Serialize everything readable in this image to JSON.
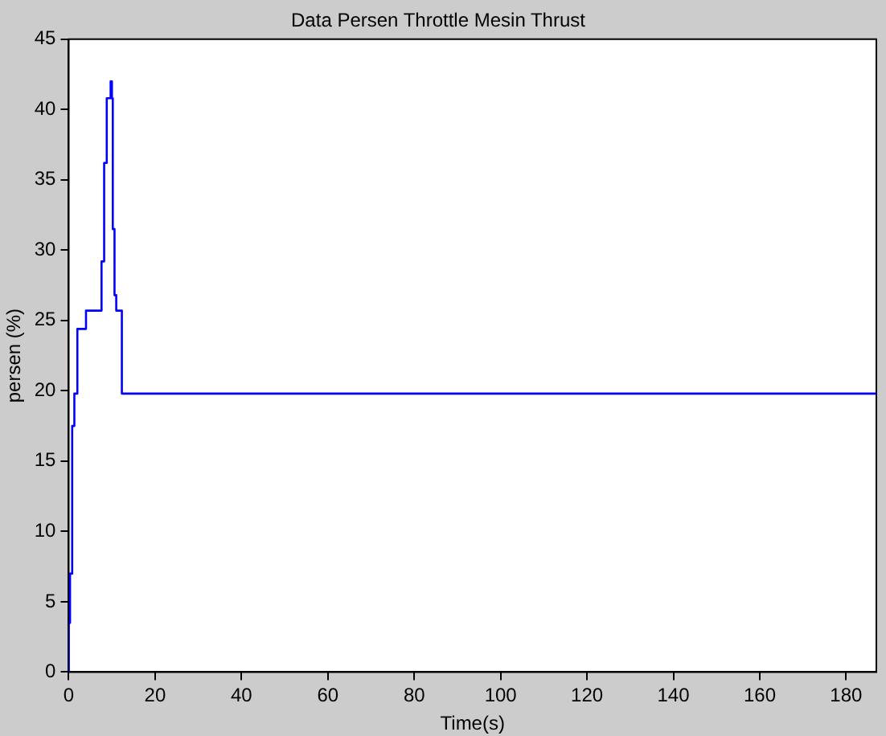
{
  "chart_data": {
    "type": "step",
    "title": "Data Persen Throttle Mesin Thrust",
    "xlabel": "Time(s)",
    "ylabel": "persen (%)",
    "x": [
      0,
      0.01,
      0.3,
      0.8,
      1.3,
      2,
      4,
      7.6,
      8.2,
      8.8,
      9.7,
      10,
      10.2,
      10.6,
      11,
      12.3,
      187
    ],
    "series": [
      {
        "color": "#0000ff",
        "values": [
          0,
          3.5,
          7,
          17.5,
          19.8,
          24.4,
          25.7,
          29.2,
          36.2,
          40.8,
          42,
          40.8,
          31.5,
          26.8,
          25.7,
          19.8,
          19.8
        ]
      }
    ],
    "xlim": [
      0,
      187
    ],
    "xticks": [
      0,
      20,
      40,
      60,
      80,
      100,
      120,
      140,
      160,
      180
    ],
    "ylim": [
      0,
      45
    ],
    "yticks": [
      0,
      5,
      10,
      15,
      20,
      25,
      30,
      35,
      40,
      45
    ],
    "grid": false,
    "legend": false,
    "marker": "none",
    "line_style": "solid"
  }
}
